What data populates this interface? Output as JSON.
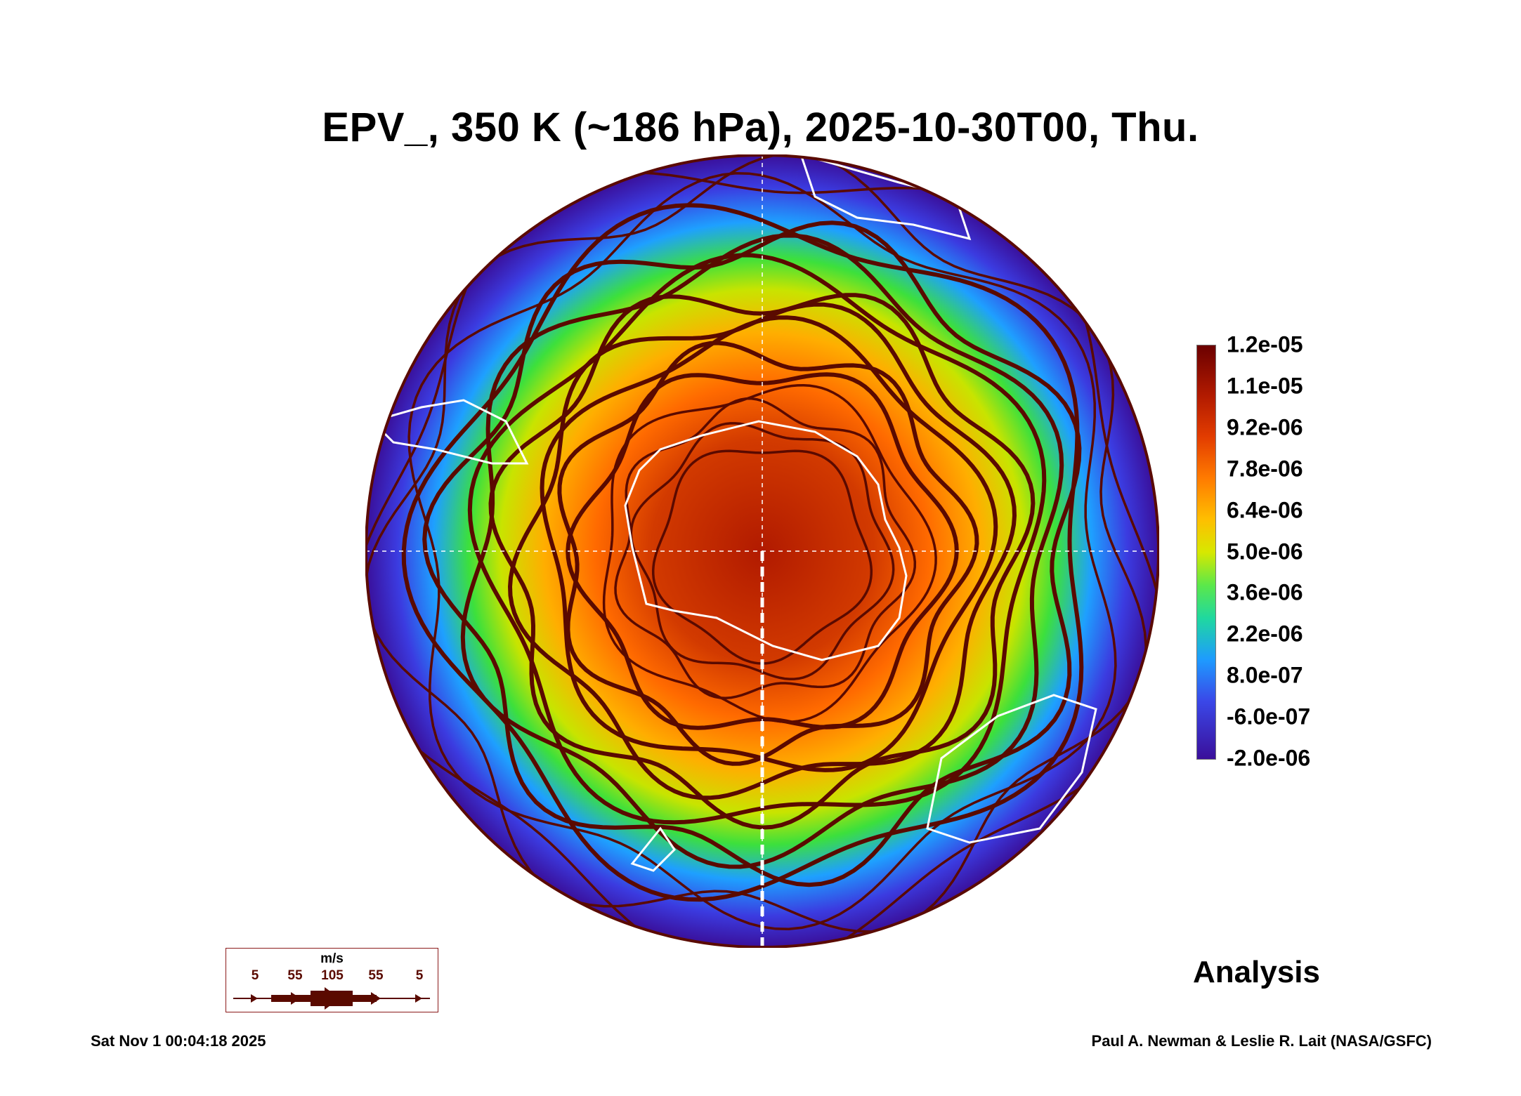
{
  "title": "EPV_, 350 K (~186 hPa), 2025-10-30T00, Thu.",
  "colorbar": {
    "labels": [
      "1.2e-05",
      "1.1e-05",
      "9.2e-06",
      "7.8e-06",
      "6.4e-06",
      "5.0e-06",
      "3.6e-06",
      "2.2e-06",
      "8.0e-07",
      "-6.0e-07",
      "-2.0e-06"
    ],
    "min": -2e-06,
    "max": 1.2e-05
  },
  "analysis_label": "Analysis",
  "wind_legend": {
    "unit": "m/s",
    "speeds": [
      "5",
      "55",
      "105",
      "55",
      "5"
    ]
  },
  "timestamp": "Sat Nov  1 00:04:18 2025",
  "credit": "Paul A. Newman & Leslie R. Lait (NASA/GSFC)",
  "colors": {
    "streamline": "#5a0a00",
    "coastline": "#ffffff",
    "high_pv": "#7a0000",
    "low_pv": "#2b0a6e"
  },
  "map": {
    "projection": "south polar stereographic",
    "field": "EPV",
    "isentropic_level": "350 K"
  }
}
